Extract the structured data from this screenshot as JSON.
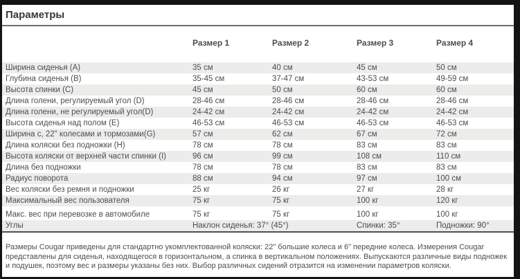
{
  "page": {
    "title": "Параметры"
  },
  "table": {
    "size_headers": [
      "Размер 1",
      "Размер 2",
      "Размер 3",
      "Размер 4"
    ],
    "rows": [
      {
        "label": "Ширина сиденья (A)",
        "values": [
          "35 см",
          "40 см",
          "45 см",
          "50 см"
        ]
      },
      {
        "label": "Глубина сиденья (B)",
        "values": [
          "35-45 см",
          "37-47 см",
          "43-53 см",
          "49-59 см"
        ]
      },
      {
        "label": "Высота спинки (C)",
        "values": [
          "45 см",
          "50 см",
          "60 см",
          "60 см"
        ]
      },
      {
        "label": "Длина голени, регулируемый угол (D)",
        "values": [
          "28-46 см",
          "28-46 см",
          "28-46 см",
          "28-46 см"
        ]
      },
      {
        "label": "Длина голени, не регулируемый угол(D)",
        "values": [
          "24-42 см",
          "24-42 см",
          "24-42 см",
          "24-42 см"
        ]
      },
      {
        "label": "Высота сиденья над полом (E)",
        "values": [
          "46-53 см",
          "46-53 см",
          "46-53 см",
          "46-53 см"
        ]
      },
      {
        "label": "Ширина с, 22\" колесами и тормозами(G)",
        "values": [
          "57 см",
          "62 см",
          "67 см",
          "72 см"
        ]
      },
      {
        "label": "Длина коляски без подножки (H)",
        "values": [
          "78 см",
          "78 см",
          "83 см",
          "83 см"
        ]
      },
      {
        "label": "Высота коляски от верхней части спинки (I)",
        "values": [
          "96 см",
          "99 см",
          "108 см",
          "110 см"
        ]
      },
      {
        "label": "Длина без подножки",
        "values": [
          "78 см",
          "78 см",
          "83 см",
          "83 см"
        ]
      },
      {
        "label": "Радиус поворота",
        "values": [
          "88 см",
          "94 см",
          "97 см",
          "100 см"
        ]
      },
      {
        "label": "Вес коляски без ремня и подножки",
        "values": [
          "25 кг",
          "26 кг",
          "27 кг",
          "28 кг"
        ]
      },
      {
        "label": "Максимальный вес пользователя",
        "values": [
          "75 кг",
          "75 кг",
          "100 кг",
          "120 кг"
        ]
      },
      {
        "label": "Макс. вес при перевозке в автомобиле",
        "values": [
          "75 кг",
          "75 кг",
          "100 кг",
          "100 кг"
        ]
      },
      {
        "label": "Углы",
        "values": [
          "Наклон сиденья: 37° (45°)",
          "",
          "Спинки: 35°",
          "Подножки: 90°"
        ]
      }
    ]
  },
  "footer": {
    "note": "Размеры Cougar приведены для стандартно укомплектованной коляски: 22\" большие колеса и 6\" передние колеса. Измерения Cougar представлены для сиденья, находящегося в горизонтальном, а спинка в вертикальном положениях. Выпускаются различные виды подножек и подушек, поэтому вес и размеры указаны без них. Выбор различных сидений отразится на изменении параметров коляски."
  },
  "colors": {
    "frame": "#141414",
    "text": "#4d4d4d",
    "title-text": "#383838",
    "rule": "#6f6f6f",
    "row-stripe": "#ececeb",
    "table-border": "#4f4f4f"
  }
}
